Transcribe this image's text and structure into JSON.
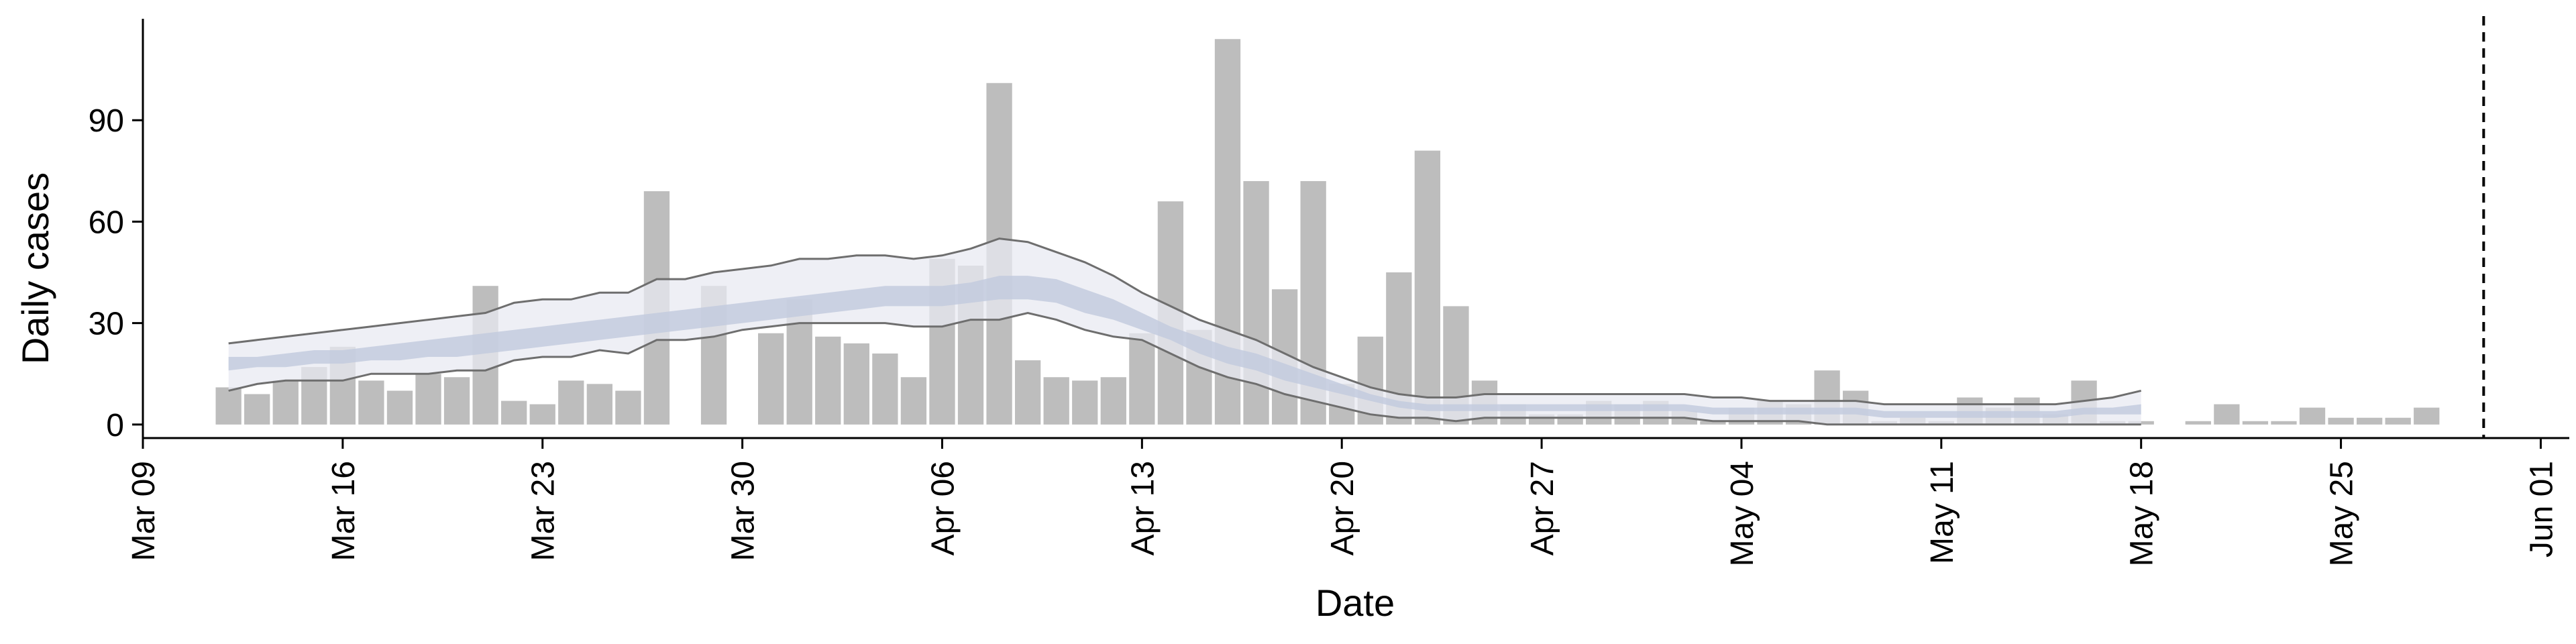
{
  "chart_data": {
    "type": "bar",
    "title": "",
    "xlabel": "Date",
    "ylabel": "Daily cases",
    "start_date": "2020-03-12",
    "bar_color": "#bdbdbd",
    "band_outer_color": "#e8e9f1",
    "band_inner_color": "#c3cbde",
    "band_line_color": "#6e6e6e",
    "dashed_line_date": "2020-05-30",
    "xlim": [
      "2020-03-09",
      "2020-06-02"
    ],
    "ylim": [
      -4,
      120
    ],
    "x_ticks": [
      {
        "date": "2020-03-09",
        "label": "Mar 09"
      },
      {
        "date": "2020-03-16",
        "label": "Mar 16"
      },
      {
        "date": "2020-03-23",
        "label": "Mar 23"
      },
      {
        "date": "2020-03-30",
        "label": "Mar 30"
      },
      {
        "date": "2020-04-06",
        "label": "Apr 06"
      },
      {
        "date": "2020-04-13",
        "label": "Apr 13"
      },
      {
        "date": "2020-04-20",
        "label": "Apr 20"
      },
      {
        "date": "2020-04-27",
        "label": "Apr 27"
      },
      {
        "date": "2020-05-04",
        "label": "May 04"
      },
      {
        "date": "2020-05-11",
        "label": "May 11"
      },
      {
        "date": "2020-05-18",
        "label": "May 18"
      },
      {
        "date": "2020-05-25",
        "label": "May 25"
      },
      {
        "date": "2020-06-01",
        "label": "Jun 01"
      }
    ],
    "y_ticks": [
      0,
      30,
      60,
      90
    ],
    "daily_cases": [
      11,
      9,
      13,
      17,
      23,
      13,
      10,
      15,
      14,
      41,
      7,
      6,
      13,
      12,
      10,
      69,
      0,
      41,
      0,
      27,
      37,
      26,
      24,
      21,
      14,
      49,
      47,
      101,
      19,
      14,
      13,
      14,
      27,
      66,
      28,
      114,
      72,
      40,
      72,
      12,
      26,
      45,
      81,
      35,
      13,
      6,
      3,
      3,
      7,
      6,
      7,
      4,
      1,
      5,
      7,
      6,
      16,
      10,
      1,
      2,
      1,
      8,
      5,
      8,
      3,
      13,
      1,
      1,
      0,
      1,
      6,
      1,
      1,
      5,
      2,
      2,
      2,
      5
    ],
    "band_start_date": "2020-03-12",
    "band_outer_upper": [
      24,
      25,
      26,
      27,
      28,
      29,
      30,
      31,
      32,
      33,
      36,
      37,
      37,
      39,
      39,
      43,
      43,
      45,
      46,
      47,
      49,
      49,
      50,
      50,
      49,
      50,
      52,
      55,
      54,
      51,
      48,
      44,
      39,
      35,
      31,
      28,
      25,
      21,
      17,
      14,
      11,
      9,
      8,
      8,
      9,
      9,
      9,
      9,
      9,
      9,
      9,
      9,
      8,
      8,
      7,
      7,
      7,
      7,
      6,
      6,
      6,
      6,
      6,
      6,
      6,
      7,
      8,
      10
    ],
    "band_inner_upper": [
      20,
      20,
      21,
      22,
      22,
      23,
      24,
      25,
      26,
      27,
      28,
      29,
      30,
      31,
      32,
      33,
      34,
      35,
      36,
      37,
      38,
      39,
      40,
      41,
      41,
      41,
      42,
      44,
      44,
      43,
      40,
      37,
      33,
      29,
      26,
      23,
      21,
      18,
      15,
      12,
      9,
      7,
      6,
      6,
      6,
      6,
      6,
      6,
      6,
      6,
      6,
      6,
      5,
      5,
      5,
      5,
      5,
      5,
      4,
      4,
      4,
      4,
      4,
      4,
      4,
      5,
      5,
      6
    ],
    "band_inner_lower": [
      16,
      17,
      17,
      18,
      18,
      19,
      19,
      20,
      20,
      21,
      22,
      23,
      24,
      25,
      26,
      27,
      28,
      29,
      30,
      31,
      32,
      33,
      34,
      35,
      35,
      35,
      36,
      37,
      37,
      36,
      33,
      31,
      28,
      25,
      21,
      18,
      16,
      13,
      11,
      9,
      7,
      5,
      4,
      4,
      4,
      4,
      4,
      4,
      4,
      4,
      4,
      4,
      3,
      3,
      3,
      3,
      3,
      3,
      2,
      2,
      2,
      2,
      2,
      2,
      2,
      3,
      3,
      3
    ],
    "band_outer_lower": [
      10,
      12,
      13,
      13,
      13,
      15,
      15,
      15,
      16,
      16,
      19,
      20,
      20,
      22,
      21,
      25,
      25,
      26,
      28,
      29,
      30,
      30,
      30,
      30,
      29,
      29,
      31,
      31,
      33,
      31,
      28,
      26,
      25,
      21,
      17,
      14,
      12,
      9,
      7,
      5,
      3,
      2,
      2,
      1,
      2,
      2,
      2,
      2,
      2,
      2,
      2,
      2,
      1,
      1,
      1,
      1,
      0,
      0,
      0,
      0,
      0,
      0,
      0,
      0,
      0,
      0,
      0,
      0
    ]
  }
}
